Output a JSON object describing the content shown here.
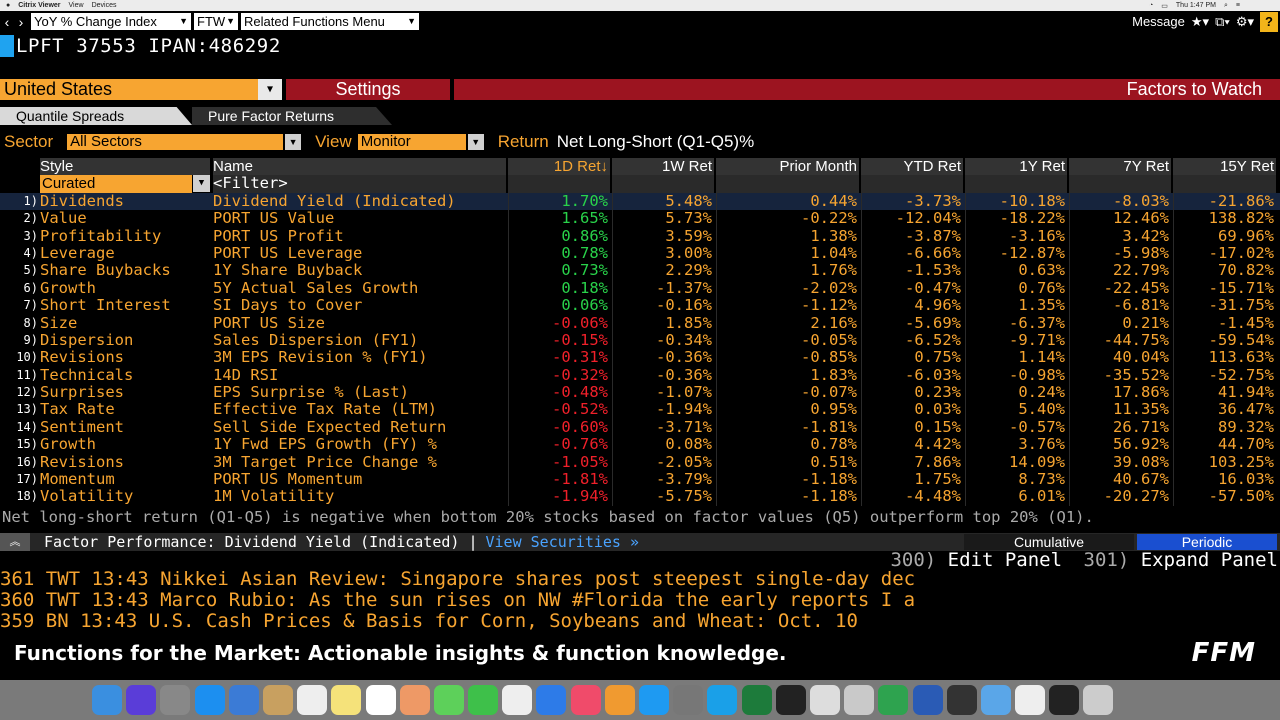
{
  "macbar": {
    "app": "Citrix Viewer",
    "menu": [
      "View",
      "Devices"
    ],
    "clock": "Thu 1:47 PM"
  },
  "toolbar": {
    "function_select": "YoY % Change Index",
    "ftw_select": "FTW",
    "related_menu": "Related Functions Menu",
    "message": "Message",
    "help": "?"
  },
  "command": "LPFT 37553 IPAN:486292",
  "header": {
    "country": "United States",
    "settings": "Settings",
    "title": "Factors to Watch"
  },
  "tabs": [
    "Quantile Spreads",
    "Pure Factor Returns"
  ],
  "filters": {
    "sector_label": "Sector",
    "sector_value": "All Sectors",
    "view_label": "View",
    "view_value": "Monitor",
    "return_label": "Return",
    "return_value": "Net Long-Short (Q1-Q5)%"
  },
  "columns": {
    "style": "Style",
    "name": "Name",
    "d1": "1D Ret↓",
    "w1": "1W Ret",
    "pm": "Prior Month",
    "ytd": "YTD Ret",
    "y1": "1Y Ret",
    "y7": "7Y Ret",
    "y15": "15Y Ret"
  },
  "filter_row": {
    "style": "Curated",
    "name": "<Filter>"
  },
  "rows": [
    {
      "idx": "1)",
      "style": "Dividends",
      "name": "Dividend Yield (Indicated)",
      "d1": "1.70%",
      "w1": "5.48%",
      "pm": "0.44%",
      "ytd": "-3.73%",
      "y1": "-10.18%",
      "y7": "-8.03%",
      "y15": "-21.86%"
    },
    {
      "idx": "2)",
      "style": "Value",
      "name": "PORT US Value",
      "d1": "1.65%",
      "w1": "5.73%",
      "pm": "-0.22%",
      "ytd": "-12.04%",
      "y1": "-18.22%",
      "y7": "12.46%",
      "y15": "138.82%"
    },
    {
      "idx": "3)",
      "style": "Profitability",
      "name": "PORT US Profit",
      "d1": "0.86%",
      "w1": "3.59%",
      "pm": "1.38%",
      "ytd": "-3.87%",
      "y1": "-3.16%",
      "y7": "3.42%",
      "y15": "69.96%"
    },
    {
      "idx": "4)",
      "style": "Leverage",
      "name": "PORT US Leverage",
      "d1": "0.78%",
      "w1": "3.00%",
      "pm": "1.04%",
      "ytd": "-6.66%",
      "y1": "-12.87%",
      "y7": "-5.98%",
      "y15": "-17.02%"
    },
    {
      "idx": "5)",
      "style": "Share Buybacks",
      "name": "1Y Share Buyback",
      "d1": "0.73%",
      "w1": "2.29%",
      "pm": "1.76%",
      "ytd": "-1.53%",
      "y1": "0.63%",
      "y7": "22.79%",
      "y15": "70.82%"
    },
    {
      "idx": "6)",
      "style": "Growth",
      "name": "5Y Actual Sales Growth",
      "d1": "0.18%",
      "w1": "-1.37%",
      "pm": "-2.02%",
      "ytd": "-0.47%",
      "y1": "0.76%",
      "y7": "-22.45%",
      "y15": "-15.71%"
    },
    {
      "idx": "7)",
      "style": "Short Interest",
      "name": "SI Days to Cover",
      "d1": "0.06%",
      "w1": "-0.16%",
      "pm": "-1.12%",
      "ytd": "4.96%",
      "y1": "1.35%",
      "y7": "-6.81%",
      "y15": "-31.75%"
    },
    {
      "idx": "8)",
      "style": "Size",
      "name": "PORT US Size",
      "d1": "-0.06%",
      "w1": "1.85%",
      "pm": "2.16%",
      "ytd": "-5.69%",
      "y1": "-6.37%",
      "y7": "0.21%",
      "y15": "-1.45%"
    },
    {
      "idx": "9)",
      "style": "Dispersion",
      "name": "Sales Dispersion (FY1)",
      "d1": "-0.15%",
      "w1": "-0.34%",
      "pm": "-0.05%",
      "ytd": "-6.52%",
      "y1": "-9.71%",
      "y7": "-44.75%",
      "y15": "-59.54%"
    },
    {
      "idx": "10)",
      "style": "Revisions",
      "name": "3M EPS Revision % (FY1)",
      "d1": "-0.31%",
      "w1": "-0.36%",
      "pm": "-0.85%",
      "ytd": "0.75%",
      "y1": "1.14%",
      "y7": "40.04%",
      "y15": "113.63%"
    },
    {
      "idx": "11)",
      "style": "Technicals",
      "name": "14D RSI",
      "d1": "-0.32%",
      "w1": "-0.36%",
      "pm": "1.83%",
      "ytd": "-6.03%",
      "y1": "-0.98%",
      "y7": "-35.52%",
      "y15": "-52.75%"
    },
    {
      "idx": "12)",
      "style": "Surprises",
      "name": "EPS Surprise % (Last)",
      "d1": "-0.48%",
      "w1": "-1.07%",
      "pm": "-0.07%",
      "ytd": "0.23%",
      "y1": "0.24%",
      "y7": "17.86%",
      "y15": "41.94%"
    },
    {
      "idx": "13)",
      "style": "Tax Rate",
      "name": "Effective Tax Rate (LTM)",
      "d1": "-0.52%",
      "w1": "-1.94%",
      "pm": "0.95%",
      "ytd": "0.03%",
      "y1": "5.40%",
      "y7": "11.35%",
      "y15": "36.47%"
    },
    {
      "idx": "14)",
      "style": "Sentiment",
      "name": "Sell Side Expected Return",
      "d1": "-0.60%",
      "w1": "-3.71%",
      "pm": "-1.81%",
      "ytd": "0.15%",
      "y1": "-0.57%",
      "y7": "26.71%",
      "y15": "89.32%"
    },
    {
      "idx": "15)",
      "style": "Growth",
      "name": "1Y Fwd EPS Growth (FY) %",
      "d1": "-0.76%",
      "w1": "0.08%",
      "pm": "0.78%",
      "ytd": "4.42%",
      "y1": "3.76%",
      "y7": "56.92%",
      "y15": "44.70%"
    },
    {
      "idx": "16)",
      "style": "Revisions",
      "name": "3M Target Price Change %",
      "d1": "-1.05%",
      "w1": "-2.05%",
      "pm": "0.51%",
      "ytd": "7.86%",
      "y1": "14.09%",
      "y7": "39.08%",
      "y15": "103.25%"
    },
    {
      "idx": "17)",
      "style": "Momentum",
      "name": "PORT US Momentum",
      "d1": "-1.81%",
      "w1": "-3.79%",
      "pm": "-1.18%",
      "ytd": "1.75%",
      "y1": "8.73%",
      "y7": "40.67%",
      "y15": "16.03%"
    },
    {
      "idx": "18)",
      "style": "Volatility",
      "name": "1M Volatility",
      "d1": "-1.94%",
      "w1": "-5.75%",
      "pm": "-1.18%",
      "ytd": "-4.48%",
      "y1": "6.01%",
      "y7": "-20.27%",
      "y15": "-57.50%"
    }
  ],
  "note": "Net long-short return (Q1-Q5) is negative when bottom 20% stocks based on factor values (Q5) outperform top 20% (Q1).",
  "perf": {
    "title": "Factor Performance: Dividend Yield (Indicated) |",
    "view_link": "View Securities »",
    "cumulative": "Cumulative",
    "periodic": "Periodic"
  },
  "panel": {
    "edit_num": "300)",
    "edit": "Edit Panel",
    "expand_num": "301)",
    "expand": "Expand Panel"
  },
  "news": [
    "361 TWT 13:43 Nikkei Asian Review: Singapore shares post steepest single-day dec",
    "360 TWT 13:43 Marco Rubio: As the sun rises on NW #Florida the early reports I a",
    "359 BN  13:43 U.S. Cash Prices & Basis for Corn, Soybeans and Wheat: Oct. 10"
  ],
  "ffm": {
    "text": "Functions for the Market: Actionable insights & function knowledge.",
    "logo": "FFM"
  },
  "colors": {
    "orange": "#f7a531",
    "red_bar": "#9c1420",
    "positive": "#29d24a",
    "negative": "#f0202a",
    "link": "#4aa3ff",
    "periodic": "#1a4fd0"
  },
  "dock": [
    "finder-icon",
    "siri-icon",
    "launchpad-icon",
    "safari-icon",
    "preview-icon",
    "notes-icon",
    "calendar-icon",
    "stickies-icon",
    "reminders-icon",
    "photos-icon",
    "messages-icon",
    "facetime-icon",
    "textedit-icon",
    "keynote-icon",
    "itunes-icon",
    "books-icon",
    "appstore-icon",
    "sysprefs-icon",
    "skype-icon",
    "excel-icon",
    "terminal-icon",
    "grapher-icon",
    "tex-icon",
    "sync-icon",
    "word-icon",
    "activity-icon",
    "folder-icon",
    "document-icon",
    "display-icon",
    "trash-icon"
  ],
  "dock_colors": [
    "#3a8fe0",
    "#5a3dd8",
    "#888",
    "#1c8ff0",
    "#3b7bd6",
    "#c8a060",
    "#eee",
    "#f5e27a",
    "#fff",
    "#e96",
    "#5dd05a",
    "#3ec04a",
    "#eee",
    "#2d7be8",
    "#f04b6a",
    "#f09a30",
    "#1e9af2",
    "#777",
    "#1aa0e8",
    "#1d7b3b",
    "#222",
    "#ddd",
    "#c9c9c9",
    "#2ea34f",
    "#2a5bb5",
    "#333",
    "#5aa6e8",
    "#eee",
    "#222",
    "#ccc"
  ]
}
